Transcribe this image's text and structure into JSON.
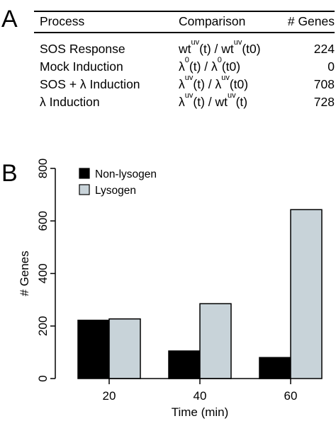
{
  "panel_a_label": "A",
  "panel_b_label": "B",
  "table": {
    "headers": [
      "Process",
      "Comparison",
      "# Genes"
    ],
    "rows": [
      {
        "process": "SOS Response",
        "comparison": [
          [
            "wt",
            ""
          ],
          [
            "uv",
            "sup"
          ],
          [
            "(t) / wt",
            ""
          ],
          [
            "uv",
            "sup"
          ],
          [
            "(t0)",
            ""
          ]
        ],
        "genes": "224"
      },
      {
        "process": "Mock Induction",
        "comparison": [
          [
            "λ",
            ""
          ],
          [
            "0",
            "sup"
          ],
          [
            "(t) / λ",
            ""
          ],
          [
            "0",
            "sup"
          ],
          [
            "(t0)",
            ""
          ]
        ],
        "genes": "0"
      },
      {
        "process": "SOS + λ Induction",
        "comparison": [
          [
            "λ",
            ""
          ],
          [
            "uv",
            "sup"
          ],
          [
            "(t) / λ",
            ""
          ],
          [
            "uv",
            "sup"
          ],
          [
            "(t0)",
            ""
          ]
        ],
        "genes": "708"
      },
      {
        "process": "λ Induction",
        "comparison": [
          [
            "λ",
            ""
          ],
          [
            "uv",
            "sup"
          ],
          [
            "(t) / wt",
            ""
          ],
          [
            "uv",
            "sup"
          ],
          [
            "(t)",
            ""
          ]
        ],
        "genes": "728"
      }
    ]
  },
  "chart_data": {
    "type": "bar",
    "categories": [
      "20",
      "40",
      "60"
    ],
    "series": [
      {
        "name": "Non-lysogen",
        "color": "#000000",
        "values": [
          222,
          105,
          80
        ]
      },
      {
        "name": "Lysogen",
        "color": "#c8d3d9",
        "values": [
          227,
          285,
          643
        ]
      }
    ],
    "xlabel": "Time (min)",
    "ylabel": "# Genes",
    "ylim": [
      0,
      800
    ],
    "yticks": [
      0,
      200,
      400,
      600,
      800
    ],
    "legend_position": "top-left",
    "grid": false
  }
}
